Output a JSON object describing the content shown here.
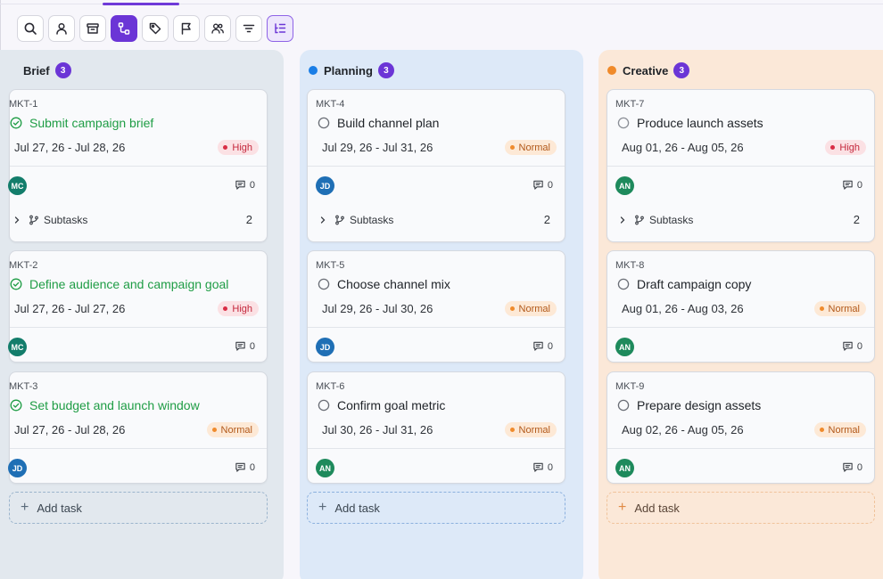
{
  "toolbar": {
    "buttons": [
      {
        "name": "search-button",
        "icon": "search-icon"
      },
      {
        "name": "assignee-button",
        "icon": "user-icon"
      },
      {
        "name": "archive-button",
        "icon": "archive-icon"
      },
      {
        "name": "subtasks-button",
        "icon": "subtask-tree-icon",
        "state": "active"
      },
      {
        "name": "tags-button",
        "icon": "tag-icon"
      },
      {
        "name": "priority-button",
        "icon": "flag-icon"
      },
      {
        "name": "team-button",
        "icon": "users-icon"
      },
      {
        "name": "filter-button",
        "icon": "filter-icon"
      },
      {
        "name": "outline-view-button",
        "icon": "list-tree-icon",
        "state": "selected"
      }
    ]
  },
  "columns": [
    {
      "title": "Brief",
      "count": "3",
      "dot_color": "",
      "cards": [
        {
          "id": "MKT-1",
          "title": "Submit campaign brief",
          "done": true,
          "dates": "Jul 27, 26 - Jul 28, 26",
          "priority": "High",
          "avatar": "MC",
          "avatar_color": "#137d6b",
          "comments": "0",
          "subtasks_label": "Subtasks",
          "subtasks_count": "2"
        },
        {
          "id": "MKT-2",
          "title": "Define audience and campaign goal",
          "done": true,
          "dates": "Jul 27, 26 - Jul 27, 26",
          "priority": "High",
          "avatar": "MC",
          "avatar_color": "#137d6b",
          "comments": "0"
        },
        {
          "id": "MKT-3",
          "title": "Set budget and launch window",
          "done": true,
          "dates": "Jul 27, 26 - Jul 28, 26",
          "priority": "Normal",
          "avatar": "JD",
          "avatar_color": "#1f6fb5",
          "comments": "0"
        }
      ],
      "add_task_label": "Add task"
    },
    {
      "title": "Planning",
      "count": "3",
      "dot_color": "#1a7ee6",
      "cards": [
        {
          "id": "MKT-4",
          "title": "Build channel plan",
          "done": false,
          "dates": "Jul 29, 26 - Jul 31, 26",
          "priority": "Normal",
          "avatar": "JD",
          "avatar_color": "#1f6fb5",
          "comments": "0",
          "subtasks_label": "Subtasks",
          "subtasks_count": "2"
        },
        {
          "id": "MKT-5",
          "title": "Choose channel mix",
          "done": false,
          "dates": "Jul 29, 26 - Jul 30, 26",
          "priority": "Normal",
          "avatar": "JD",
          "avatar_color": "#1f6fb5",
          "comments": "0"
        },
        {
          "id": "MKT-6",
          "title": "Confirm goal metric",
          "done": false,
          "dates": "Jul 30, 26 - Jul 31, 26",
          "priority": "Normal",
          "avatar": "AN",
          "avatar_color": "#1e8a5c",
          "comments": "0"
        }
      ],
      "add_task_label": "Add task"
    },
    {
      "title": "Creative",
      "count": "3",
      "dot_color": "#f08a2a",
      "cards": [
        {
          "id": "MKT-7",
          "title": "Produce launch assets",
          "done": false,
          "dates": "Aug 01, 26 - Aug 05, 26",
          "priority": "High",
          "avatar": "AN",
          "avatar_color": "#1e8a5c",
          "comments": "0",
          "subtasks_label": "Subtasks",
          "subtasks_count": "2"
        },
        {
          "id": "MKT-8",
          "title": "Draft campaign copy",
          "done": false,
          "dates": "Aug 01, 26 - Aug 03, 26",
          "priority": "Normal",
          "avatar": "AN",
          "avatar_color": "#1e8a5c",
          "comments": "0"
        },
        {
          "id": "MKT-9",
          "title": "Prepare design assets",
          "done": false,
          "dates": "Aug 02, 26 - Aug 05, 26",
          "priority": "Normal",
          "avatar": "AN",
          "avatar_color": "#1e8a5c",
          "comments": "0"
        }
      ],
      "add_task_label": "Add task"
    }
  ]
}
